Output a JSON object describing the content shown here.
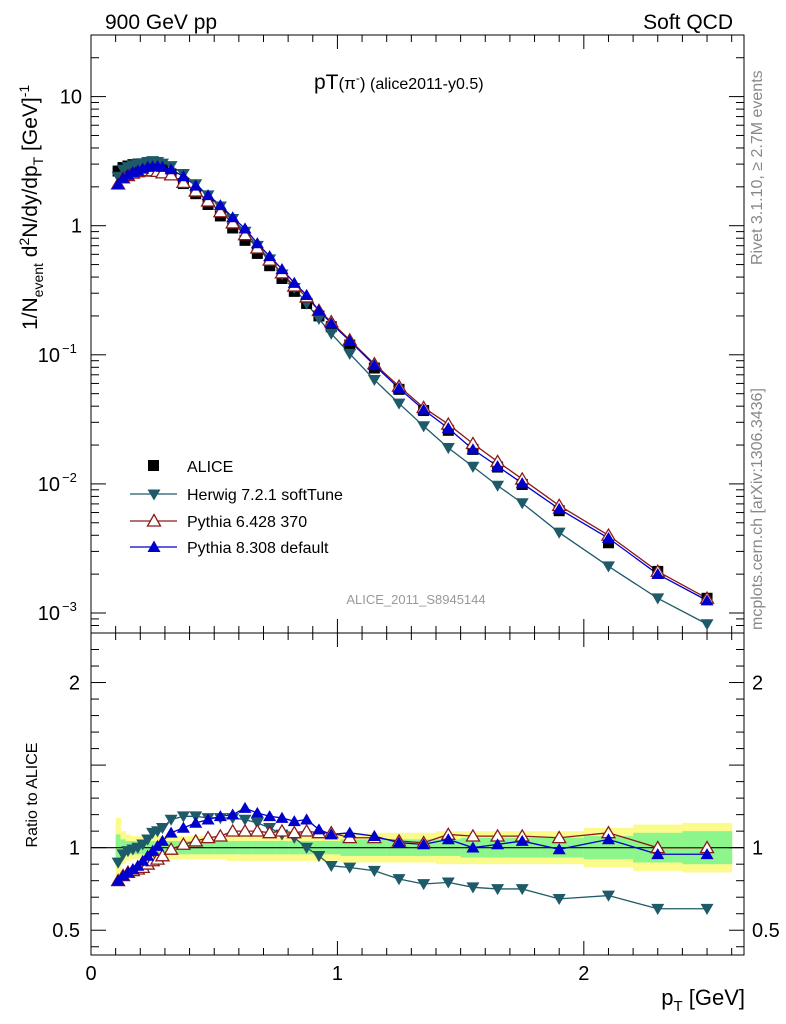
{
  "header": {
    "left": "900 GeV pp",
    "right": "Soft QCD"
  },
  "title": {
    "main": "pT",
    "particle": "(π",
    "particle_sup": "-",
    "particle_close": ")",
    "ref": " (alice2011-y0.5)"
  },
  "side_labels": {
    "rivet": "Rivet 3.1.10, ≥ 2.7M events",
    "mcplots": "mcplots.cern.ch [arXiv:1306.3436]"
  },
  "watermark": "ALICE_2011_S8945144",
  "axes": {
    "ylabel": {
      "a": "1/N",
      "a_sub": "event",
      "b": " d",
      "b_sup": "2",
      "c": "N/dy/dp",
      "c_sub": "T",
      "d": " [GeV]",
      "d_sup": "-1"
    },
    "ratio_ylabel": "Ratio to ALICE",
    "xlabel": {
      "a": "p",
      "a_sub": "T",
      "b": " [GeV]"
    },
    "main_ticks": [
      {
        "label": "10",
        "exp": "",
        "value": 10
      },
      {
        "label": "1",
        "exp": "",
        "value": 1
      },
      {
        "label": "10",
        "exp": "−1",
        "value": 0.1
      },
      {
        "label": "10",
        "exp": "−2",
        "value": 0.01
      },
      {
        "label": "10",
        "exp": "−3",
        "value": 0.001
      }
    ],
    "ratio_ticks": [
      {
        "label": "2",
        "value": 2
      },
      {
        "label": "1",
        "value": 1
      },
      {
        "label": "0.5",
        "value": 0.5
      }
    ],
    "x_ticks": [
      {
        "label": "0",
        "value": 0
      },
      {
        "label": "1",
        "value": 1
      },
      {
        "label": "2",
        "value": 2
      }
    ]
  },
  "legend": [
    {
      "key": "data",
      "label": "ALICE"
    },
    {
      "key": "herwig",
      "label": "Herwig 7.2.1 softTune"
    },
    {
      "key": "py6",
      "label": "Pythia 6.428 370"
    },
    {
      "key": "py8",
      "label": "Pythia 8.308 default"
    }
  ],
  "chart_data": {
    "type": "scatter",
    "xlim": [
      0,
      2.65
    ],
    "ylim": [
      0.0007,
      30
    ],
    "yscale": "log",
    "ratio_ylim": [
      0.35,
      2.3
    ],
    "x": [
      0.11,
      0.13,
      0.15,
      0.17,
      0.19,
      0.21,
      0.23,
      0.25,
      0.27,
      0.29,
      0.325,
      0.375,
      0.425,
      0.475,
      0.525,
      0.575,
      0.625,
      0.675,
      0.725,
      0.775,
      0.825,
      0.875,
      0.925,
      0.975,
      1.05,
      1.15,
      1.25,
      1.35,
      1.45,
      1.55,
      1.65,
      1.75,
      1.9,
      2.1,
      2.3,
      2.5
    ],
    "series": [
      {
        "name": "ALICE",
        "color": "#000000",
        "marker": "square",
        "values": [
          2.65,
          2.82,
          2.9,
          2.97,
          3.0,
          3.0,
          2.98,
          2.92,
          2.83,
          2.71,
          2.48,
          2.12,
          1.77,
          1.46,
          1.19,
          0.96,
          0.77,
          0.61,
          0.49,
          0.39,
          0.31,
          0.25,
          0.2,
          0.165,
          0.119,
          0.079,
          0.054,
          0.037,
          0.026,
          0.0185,
          0.0135,
          0.0099,
          0.0062,
          0.0035,
          0.0021,
          0.0013
        ]
      },
      {
        "name": "Herwig 7.2.1 softTune",
        "color": "#1f5a69",
        "marker": "triangle-down",
        "values": [
          2.4,
          2.72,
          2.85,
          2.94,
          3.0,
          3.05,
          3.12,
          3.17,
          3.12,
          3.03,
          2.9,
          2.52,
          2.1,
          1.72,
          1.41,
          1.13,
          0.9,
          0.7,
          0.55,
          0.42,
          0.33,
          0.25,
          0.19,
          0.146,
          0.102,
          0.064,
          0.042,
          0.028,
          0.019,
          0.0136,
          0.0097,
          0.0071,
          0.0042,
          0.0023,
          0.0013,
          0.00082
        ]
      },
      {
        "name": "Pythia 6.428 370",
        "color": "#8b1a1a",
        "marker": "triangle-up-open",
        "values": [
          2.1,
          2.34,
          2.44,
          2.55,
          2.61,
          2.64,
          2.67,
          2.66,
          2.63,
          2.56,
          2.47,
          2.16,
          1.85,
          1.55,
          1.28,
          1.05,
          0.85,
          0.67,
          0.54,
          0.43,
          0.34,
          0.28,
          0.22,
          0.18,
          0.13,
          0.085,
          0.057,
          0.039,
          0.029,
          0.0205,
          0.0149,
          0.0109,
          0.0068,
          0.004,
          0.0021,
          0.0013
        ]
      },
      {
        "name": "Pythia 8.308 default",
        "color": "#0000cc",
        "marker": "triangle-up",
        "values": [
          2.1,
          2.34,
          2.47,
          2.6,
          2.67,
          2.76,
          2.85,
          2.87,
          2.89,
          2.85,
          2.73,
          2.41,
          2.04,
          1.72,
          1.44,
          1.16,
          0.95,
          0.73,
          0.58,
          0.46,
          0.36,
          0.29,
          0.22,
          0.175,
          0.128,
          0.083,
          0.055,
          0.0375,
          0.027,
          0.0185,
          0.0137,
          0.0101,
          0.0064,
          0.0038,
          0.002,
          0.00125
        ]
      }
    ],
    "ratio": {
      "Herwig 7.2.1 softTune": [
        0.91,
        0.96,
        0.98,
        0.99,
        1.0,
        1.02,
        1.05,
        1.09,
        1.1,
        1.12,
        1.17,
        1.19,
        1.19,
        1.18,
        1.18,
        1.18,
        1.17,
        1.15,
        1.12,
        1.08,
        1.06,
        1.0,
        0.95,
        0.89,
        0.88,
        0.86,
        0.81,
        0.78,
        0.79,
        0.76,
        0.75,
        0.75,
        0.69,
        0.71,
        0.63,
        0.63
      ],
      "Pythia 6.428 370": [
        0.8,
        0.83,
        0.85,
        0.86,
        0.87,
        0.88,
        0.9,
        0.92,
        0.93,
        0.95,
        0.99,
        1.02,
        1.04,
        1.06,
        1.07,
        1.1,
        1.1,
        1.1,
        1.09,
        1.1,
        1.09,
        1.1,
        1.09,
        1.09,
        1.06,
        1.06,
        1.04,
        1.03,
        1.08,
        1.07,
        1.07,
        1.07,
        1.06,
        1.09,
        1.0,
        1.0
      ],
      "Pythia 8.308 default": [
        0.8,
        0.83,
        0.85,
        0.87,
        0.89,
        0.92,
        0.95,
        0.98,
        1.01,
        1.04,
        1.09,
        1.12,
        1.15,
        1.17,
        1.19,
        1.2,
        1.24,
        1.21,
        1.19,
        1.18,
        1.16,
        1.17,
        1.11,
        1.08,
        1.09,
        1.07,
        1.03,
        1.02,
        1.05,
        1.0,
        1.02,
        1.04,
        0.99,
        1.05,
        0.96,
        0.96
      ]
    },
    "band_inner": [
      0.08,
      0.05,
      0.04,
      0.04,
      0.04,
      0.04,
      0.04,
      0.04,
      0.04,
      0.04,
      0.04,
      0.04,
      0.04,
      0.04,
      0.04,
      0.04,
      0.04,
      0.04,
      0.04,
      0.04,
      0.04,
      0.04,
      0.04,
      0.04,
      0.05,
      0.05,
      0.05,
      0.05,
      0.05,
      0.06,
      0.06,
      0.06,
      0.06,
      0.07,
      0.09,
      0.1
    ],
    "band_outer": [
      0.18,
      0.1,
      0.08,
      0.07,
      0.07,
      0.07,
      0.07,
      0.07,
      0.07,
      0.07,
      0.07,
      0.07,
      0.07,
      0.07,
      0.07,
      0.08,
      0.08,
      0.08,
      0.08,
      0.08,
      0.08,
      0.08,
      0.08,
      0.08,
      0.09,
      0.09,
      0.09,
      0.09,
      0.1,
      0.1,
      0.1,
      0.1,
      0.1,
      0.12,
      0.14,
      0.15
    ]
  }
}
